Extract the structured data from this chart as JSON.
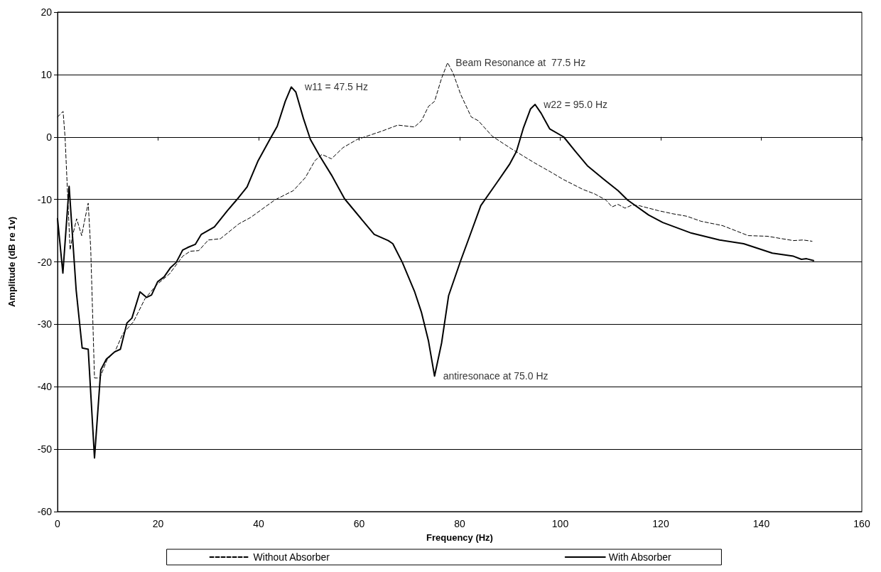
{
  "chart_data": {
    "type": "line",
    "xlabel": "Frequency (Hz)",
    "ylabel": "Amplitude (dB re 1v)",
    "xlim": [
      0,
      160
    ],
    "xticks": [
      0,
      20,
      40,
      60,
      80,
      100,
      120,
      140,
      160
    ],
    "ylim": [
      -60,
      20
    ],
    "yticks": [
      -60,
      -50,
      -40,
      -30,
      -20,
      -10,
      0,
      10,
      20
    ],
    "grid": "y",
    "legend": "bottom",
    "marker": "none",
    "series": [
      {
        "name": "Without Absorber",
        "color": "#000000",
        "line_style": "dashed",
        "x": [
          0,
          1.1,
          1.5,
          2,
          2.5,
          3,
          3.8,
          4.8,
          5.3,
          6.1,
          6.6,
          7.35,
          8.4,
          9.9,
          11.4,
          13,
          15.1,
          17.4,
          19.7,
          22.3,
          24.9,
          26.4,
          28.1,
          30,
          32.4,
          36.1,
          38.4,
          43.2,
          46.9,
          49.3,
          51.2,
          52.6,
          54.5,
          56.8,
          59.6,
          64.4,
          67.7,
          71,
          72.4,
          73.8,
          75,
          76.4,
          77.6,
          78.7,
          80.2,
          82.3,
          83.7,
          86.5,
          90.3,
          95,
          98.3,
          100.6,
          104.5,
          106.8,
          109.1,
          110.3,
          111.5,
          112.9,
          114.3,
          115.7,
          119.5,
          122.4,
          125.2,
          128,
          132.3,
          137.4,
          141.2,
          146.4,
          148.3,
          150.1
        ],
        "values": [
          3.2,
          4.1,
          -0.1,
          -9.2,
          -18.1,
          -15.8,
          -13.1,
          -15.8,
          -13.7,
          -10.6,
          -17.9,
          -38.6,
          -38.6,
          -35.6,
          -34.4,
          -31.5,
          -29.6,
          -25.9,
          -23.7,
          -21.9,
          -19.1,
          -18.3,
          -18.2,
          -16.5,
          -16.3,
          -13.9,
          -12.9,
          -10.1,
          -8.6,
          -6.5,
          -3.8,
          -2.8,
          -3.5,
          -1.7,
          -0.4,
          0.9,
          1.9,
          1.6,
          2.6,
          4.9,
          5.7,
          9.4,
          11.9,
          10.2,
          6.8,
          3.2,
          2.6,
          0.1,
          -1.9,
          -4.2,
          -5.7,
          -6.8,
          -8.4,
          -9.1,
          -10.1,
          -11.2,
          -10.8,
          -11.4,
          -10.9,
          -11.0,
          -11.8,
          -12.3,
          -12.7,
          -13.5,
          -14.2,
          -15.8,
          -15.9,
          -16.6,
          -16.5,
          -16.7
        ]
      },
      {
        "name": "With Absorber",
        "color": "#000000",
        "line_style": "solid",
        "x": [
          0,
          1.06,
          2.3,
          3.7,
          4.9,
          6.1,
          7.35,
          8.6,
          9.7,
          11.4,
          12.5,
          13.8,
          14.8,
          16.4,
          17.7,
          18.7,
          19.9,
          21.2,
          22.5,
          23.6,
          24.9,
          25.9,
          27.4,
          28.6,
          31.2,
          33.8,
          35.6,
          37.7,
          39.9,
          42.5,
          43.7,
          45.3,
          46.5,
          47.4,
          48.9,
          50.3,
          52.2,
          54.5,
          57.1,
          60.6,
          63,
          65.8,
          66.7,
          68.6,
          71,
          72.4,
          73.8,
          75,
          76.4,
          77.8,
          80.2,
          81.8,
          84.2,
          87.5,
          89.9,
          91.3,
          92.7,
          94.1,
          95,
          96.2,
          97.9,
          100.7,
          103,
          105.4,
          108.7,
          111.5,
          113.4,
          117.6,
          120.4,
          126.1,
          131.7,
          136.5,
          142.2,
          146.4,
          148,
          149,
          150.4
        ],
        "values": [
          -13.1,
          -21.8,
          -7.9,
          -24.5,
          -33.8,
          -34,
          -51.4,
          -37.3,
          -35.6,
          -34.4,
          -34,
          -29.8,
          -29,
          -24.8,
          -25.7,
          -25.3,
          -23.2,
          -22.4,
          -20.9,
          -20.1,
          -18.1,
          -17.7,
          -17.2,
          -15.6,
          -14.4,
          -11.8,
          -10.1,
          -8,
          -3.8,
          0,
          1.7,
          5.7,
          8,
          7.2,
          3,
          -0.4,
          -3.1,
          -6.1,
          -9.9,
          -13.3,
          -15.6,
          -16.6,
          -17.1,
          -20.1,
          -24.7,
          -28.1,
          -32.7,
          -38.3,
          -33,
          -25.4,
          -19.8,
          -16.3,
          -11,
          -7.2,
          -4.4,
          -2.3,
          1.5,
          4.5,
          5.2,
          3.8,
          1.3,
          0,
          -2.3,
          -4.6,
          -6.8,
          -8.6,
          -10.1,
          -12.5,
          -13.7,
          -15.4,
          -16.5,
          -17.1,
          -18.6,
          -19.1,
          -19.6,
          -19.5,
          -19.8
        ]
      }
    ],
    "annotations": [
      {
        "text": "w11 = 47.5 Hz",
        "x": 47.5,
        "y": 8
      },
      {
        "text": "Beam Resonance at  77.5 Hz",
        "x": 77.5,
        "y": 11.9
      },
      {
        "text": "w22 = 95.0 Hz",
        "x": 95,
        "y": 5.2
      },
      {
        "text": "antiresonace at 75.0 Hz",
        "x": 75,
        "y": -38.3
      }
    ]
  }
}
